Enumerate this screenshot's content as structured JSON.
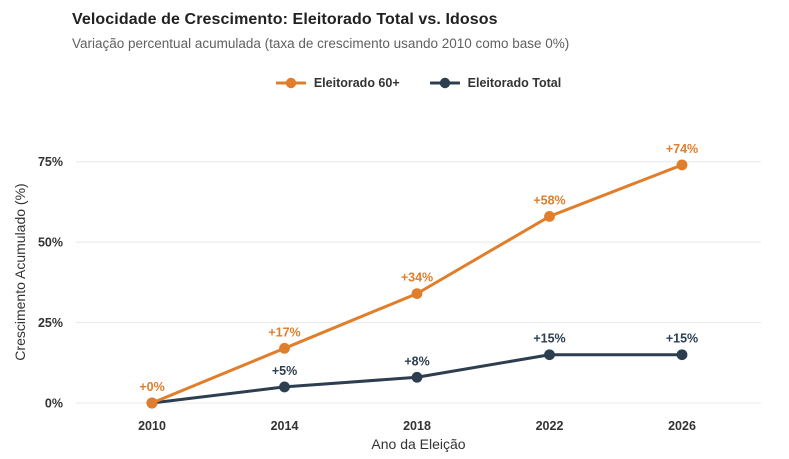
{
  "header": {
    "title": "Velocidade de Crescimento: Eleitorado Total vs. Idosos",
    "subtitle": "Variação percentual acumulada (taxa de crescimento usando 2010 como base 0%)"
  },
  "legend": {
    "items": [
      {
        "label": "Eleitorado 60+",
        "color": "#E07E2B"
      },
      {
        "label": "Eleitorado Total",
        "color": "#2C3E50"
      }
    ]
  },
  "colors": {
    "grid": "#e8e8e8",
    "tick_text": "#333333",
    "series_orange": "#E07E2B",
    "series_navy": "#2C3E50"
  },
  "chart_data": {
    "type": "line",
    "title": "Velocidade de Crescimento: Eleitorado Total vs. Idosos",
    "subtitle": "Variação percentual acumulada (taxa de crescimento usando 2010 como base 0%)",
    "xlabel": "Ano da Eleição",
    "ylabel": "Crescimento Acumulado (%)",
    "categories": [
      "2010",
      "2014",
      "2018",
      "2022",
      "2026"
    ],
    "x": [
      2010,
      2014,
      2018,
      2022,
      2026
    ],
    "series": [
      {
        "name": "Eleitorado 60+",
        "color": "#E07E2B",
        "values": [
          0,
          17,
          34,
          58,
          74
        ],
        "point_labels": [
          "+0%",
          "+17%",
          "+34%",
          "+58%",
          "+74%"
        ]
      },
      {
        "name": "Eleitorado Total",
        "color": "#2C3E50",
        "values": [
          0,
          5,
          8,
          15,
          15
        ],
        "point_labels": [
          "",
          "+5%",
          "+8%",
          "+15%",
          "+15%"
        ]
      }
    ],
    "yticks": [
      0,
      25,
      50,
      75
    ],
    "ytick_labels": [
      "0%",
      "25%",
      "50%",
      "75%"
    ],
    "ylim": [
      0,
      82
    ],
    "grid": true,
    "legend_position": "top-center",
    "markers": true
  }
}
